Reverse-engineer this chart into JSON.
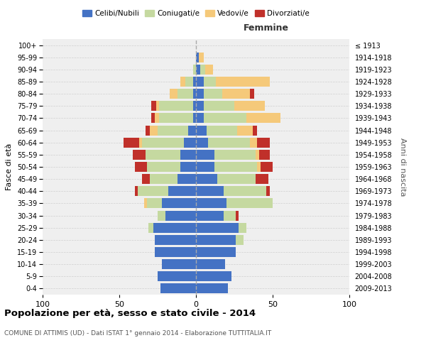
{
  "age_groups": [
    "0-4",
    "5-9",
    "10-14",
    "15-19",
    "20-24",
    "25-29",
    "30-34",
    "35-39",
    "40-44",
    "45-49",
    "50-54",
    "55-59",
    "60-64",
    "65-69",
    "70-74",
    "75-79",
    "80-84",
    "85-89",
    "90-94",
    "95-99",
    "100+"
  ],
  "birth_years": [
    "2009-2013",
    "2004-2008",
    "1999-2003",
    "1994-1998",
    "1989-1993",
    "1984-1988",
    "1979-1983",
    "1974-1978",
    "1969-1973",
    "1964-1968",
    "1959-1963",
    "1954-1958",
    "1949-1953",
    "1944-1948",
    "1939-1943",
    "1934-1938",
    "1929-1933",
    "1924-1928",
    "1919-1923",
    "1914-1918",
    "≤ 1913"
  ],
  "colors": {
    "celibi": "#4472C4",
    "coniugati": "#c5d9a0",
    "vedovi": "#f5c97a",
    "divorziati": "#c0302a"
  },
  "males": {
    "celibi": [
      23,
      25,
      22,
      27,
      27,
      28,
      20,
      22,
      18,
      12,
      10,
      10,
      8,
      5,
      2,
      2,
      2,
      2,
      0,
      0,
      0
    ],
    "coniugati": [
      0,
      0,
      0,
      0,
      0,
      3,
      5,
      10,
      20,
      18,
      22,
      23,
      27,
      20,
      22,
      22,
      10,
      5,
      2,
      0,
      0
    ],
    "vedovi": [
      0,
      0,
      0,
      0,
      0,
      0,
      0,
      2,
      0,
      0,
      0,
      0,
      2,
      5,
      3,
      2,
      5,
      3,
      0,
      0,
      0
    ],
    "divorziati": [
      0,
      0,
      0,
      0,
      0,
      0,
      0,
      0,
      2,
      5,
      8,
      8,
      10,
      3,
      2,
      3,
      0,
      0,
      0,
      0,
      0
    ]
  },
  "females": {
    "celibi": [
      21,
      23,
      19,
      26,
      26,
      28,
      18,
      20,
      18,
      14,
      12,
      12,
      8,
      7,
      5,
      5,
      5,
      5,
      3,
      2,
      0
    ],
    "coniugati": [
      0,
      0,
      0,
      0,
      5,
      5,
      8,
      30,
      28,
      25,
      28,
      27,
      27,
      20,
      28,
      20,
      12,
      8,
      3,
      0,
      0
    ],
    "vedovi": [
      0,
      0,
      0,
      0,
      0,
      0,
      0,
      0,
      0,
      0,
      2,
      2,
      5,
      10,
      22,
      20,
      18,
      35,
      5,
      3,
      0
    ],
    "divorziati": [
      0,
      0,
      0,
      0,
      0,
      0,
      2,
      0,
      2,
      8,
      8,
      7,
      8,
      3,
      0,
      0,
      3,
      0,
      0,
      0,
      0
    ]
  },
  "title": "Popolazione per età, sesso e stato civile - 2014",
  "subtitle": "COMUNE DI ATTIMIS (UD) - Dati ISTAT 1° gennaio 2014 - Elaborazione TUTTITALIA.IT",
  "xlabel_right": "Femmine",
  "ylabel_left": "Fasce di età",
  "ylabel_right": "Anni di nascita",
  "xlim": 100,
  "bg_color": "#ffffff",
  "grid_color": "#d0d0d0",
  "legend_labels": [
    "Celibi/Nubili",
    "Coniugati/e",
    "Vedovi/e",
    "Divorziati/e"
  ]
}
